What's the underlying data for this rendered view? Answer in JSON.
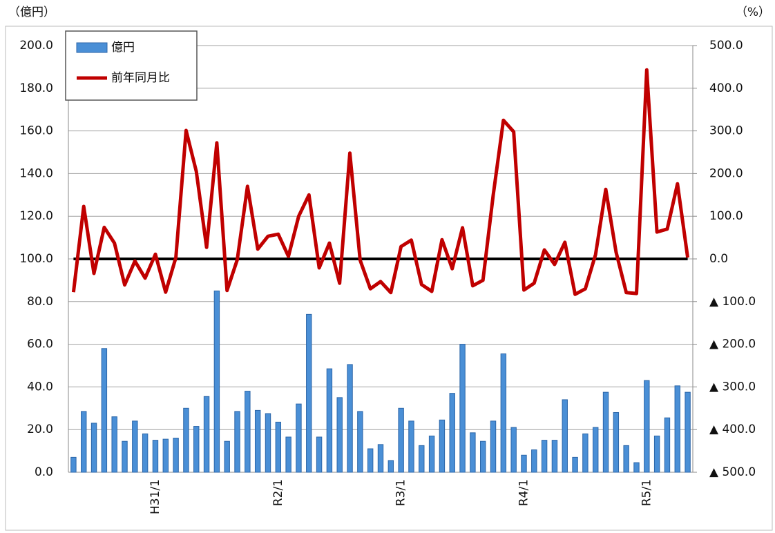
{
  "chart_data": {
    "type": "bar-line",
    "y_label": "（億円）",
    "y2_label": "（%）",
    "categories": [
      null,
      null,
      null,
      null,
      null,
      null,
      null,
      null,
      "H31/1",
      null,
      null,
      null,
      null,
      null,
      null,
      null,
      null,
      null,
      null,
      null,
      "R2/1",
      null,
      null,
      null,
      null,
      null,
      null,
      null,
      null,
      null,
      null,
      null,
      "R3/1",
      null,
      null,
      null,
      null,
      null,
      null,
      null,
      null,
      null,
      null,
      null,
      "R4/1",
      null,
      null,
      null,
      null,
      null,
      null,
      null,
      null,
      null,
      null,
      null,
      "R5/1",
      null,
      null,
      null,
      null
    ],
    "series": [
      {
        "name": "億円",
        "type": "bar",
        "color": "#4a8fd6",
        "values": [
          7,
          28.5,
          23,
          58,
          26,
          14.5,
          24,
          18,
          15,
          15.5,
          16,
          30,
          21.5,
          35.5,
          85,
          14.5,
          28.5,
          38,
          29,
          27.5,
          23.5,
          16.5,
          32,
          74,
          16.5,
          48.5,
          35,
          50.5,
          28.5,
          11,
          13,
          5.5,
          30,
          24,
          12.5,
          17,
          24.5,
          37,
          60,
          18.5,
          14.5,
          24,
          55.5,
          21,
          8,
          10.5,
          15,
          15,
          34,
          7,
          18,
          21,
          37.5,
          28,
          12.5,
          4.5,
          43,
          17,
          25.5,
          40.5,
          37.5
        ]
      },
      {
        "name": "前年同月比",
        "type": "line",
        "axis": "y2",
        "color": "#c00000",
        "values": [
          -78,
          123,
          -34,
          74,
          37,
          -61,
          -5,
          -45,
          11,
          -78,
          3,
          301,
          205,
          27,
          272,
          -74,
          -2,
          170,
          23,
          53,
          58,
          6,
          100,
          150,
          -21,
          37,
          -57,
          248,
          -3,
          -70,
          -53,
          -79,
          29,
          44,
          -60,
          -76,
          45,
          -23,
          73,
          -63,
          -50,
          149,
          325,
          298,
          -73,
          -57,
          21,
          -13,
          39,
          -83,
          -70,
          10,
          163,
          16,
          -79,
          -81,
          443,
          63,
          70,
          176,
          3
        ]
      }
    ],
    "ylim": [
      0,
      200
    ],
    "yticks": [
      {
        "value": 0,
        "label": "0.0"
      },
      {
        "value": 20,
        "label": "20.0"
      },
      {
        "value": 40,
        "label": "40.0"
      },
      {
        "value": 60,
        "label": "60.0"
      },
      {
        "value": 80,
        "label": "80.0"
      },
      {
        "value": 100,
        "label": "100.0"
      },
      {
        "value": 120,
        "label": "120.0"
      },
      {
        "value": 140,
        "label": "140.0"
      },
      {
        "value": 160,
        "label": "160.0"
      },
      {
        "value": 180,
        "label": "180.0"
      },
      {
        "value": 200,
        "label": "200.0"
      }
    ],
    "y2lim": [
      -500,
      500
    ],
    "y2ticks": [
      {
        "value": -500,
        "label": "▲ 500.0"
      },
      {
        "value": -400,
        "label": "▲ 400.0"
      },
      {
        "value": -300,
        "label": "▲ 300.0"
      },
      {
        "value": -200,
        "label": "▲ 200.0"
      },
      {
        "value": -100,
        "label": "▲ 100.0"
      },
      {
        "value": 0,
        "label": "0.0"
      },
      {
        "value": 100,
        "label": "100.0"
      },
      {
        "value": 200,
        "label": "200.0"
      },
      {
        "value": 300,
        "label": "300.0"
      },
      {
        "value": 400,
        "label": "400.0"
      },
      {
        "value": 500,
        "label": "500.0"
      }
    ],
    "grid": true,
    "legend": "top-left"
  }
}
